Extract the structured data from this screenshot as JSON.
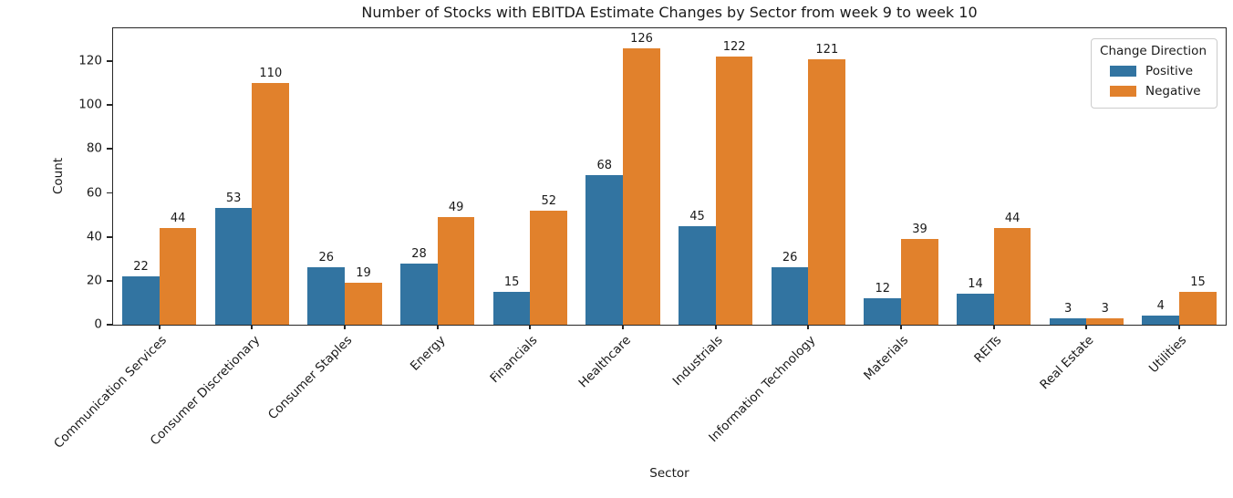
{
  "chart_data": {
    "type": "bar",
    "title": "Number of Stocks with EBITDA Estimate Changes by Sector from week 9 to week 10",
    "xlabel": "Sector",
    "ylabel": "Count",
    "categories": [
      "Communication Services",
      "Consumer Discretionary",
      "Consumer Staples",
      "Energy",
      "Financials",
      "Healthcare",
      "Industrials",
      "Information Technology",
      "Materials",
      "REITs",
      "Real Estate",
      "Utilities"
    ],
    "series": [
      {
        "name": "Positive",
        "color": "#3274a1",
        "values": [
          22,
          53,
          26,
          28,
          15,
          68,
          45,
          26,
          12,
          14,
          3,
          4
        ]
      },
      {
        "name": "Negative",
        "color": "#e1812c",
        "values": [
          44,
          110,
          19,
          49,
          52,
          126,
          122,
          121,
          39,
          44,
          3,
          15
        ]
      }
    ],
    "legend": {
      "title": "Change Direction",
      "position": "upper right"
    },
    "ylim": [
      0,
      135
    ],
    "yticks": [
      0,
      20,
      40,
      60,
      80,
      100,
      120
    ],
    "grid": false,
    "bar_value_labels_shown": true
  }
}
